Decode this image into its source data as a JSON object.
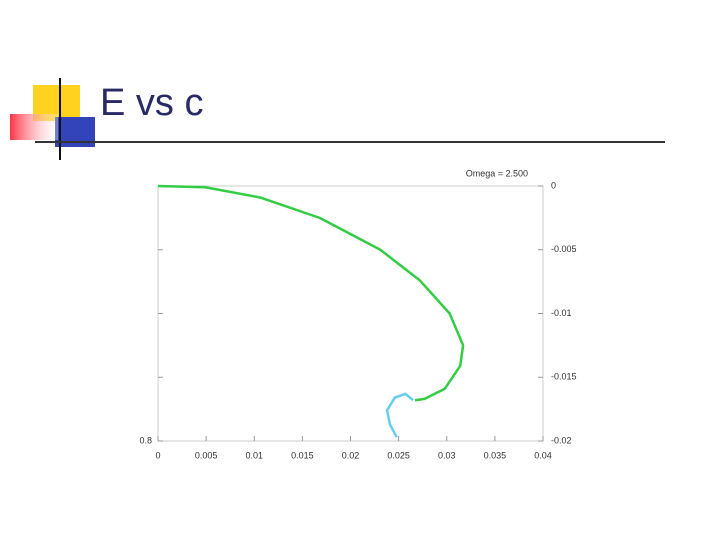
{
  "slide_title": "E vs c",
  "chart_data": {
    "type": "line",
    "legend_text": "Omega = 2.500",
    "corner_label": "0.8",
    "y_axis_side": "right",
    "xlim": [
      0,
      0.04
    ],
    "xticks": [
      0,
      0.005,
      0.01,
      0.015,
      0.02,
      0.025,
      0.03,
      0.035,
      0.04
    ],
    "ylim": [
      -0.02,
      0
    ],
    "yticks": [
      0,
      -0.005,
      -0.01,
      -0.015,
      -0.02
    ],
    "grid": false,
    "series": [
      {
        "color": "#33cc44",
        "x": [
          0,
          0.0049,
          0.0106,
          0.0168,
          0.0231,
          0.0272,
          0.0303,
          0.0317,
          0.0314,
          0.0298,
          0.0277,
          0.0267
        ],
        "values": [
          0,
          -0.0001,
          -0.0009,
          -0.0025,
          -0.005,
          -0.0074,
          -0.01,
          -0.0125,
          -0.0141,
          -0.0159,
          -0.0167,
          -0.0168
        ]
      },
      {
        "color": "#66ccee",
        "x": [
          0.0265,
          0.0257,
          0.0246,
          0.0238,
          0.0241,
          0.0248
        ],
        "values": [
          -0.0168,
          -0.0163,
          -0.0166,
          -0.0176,
          -0.0187,
          -0.0197
        ]
      }
    ]
  }
}
